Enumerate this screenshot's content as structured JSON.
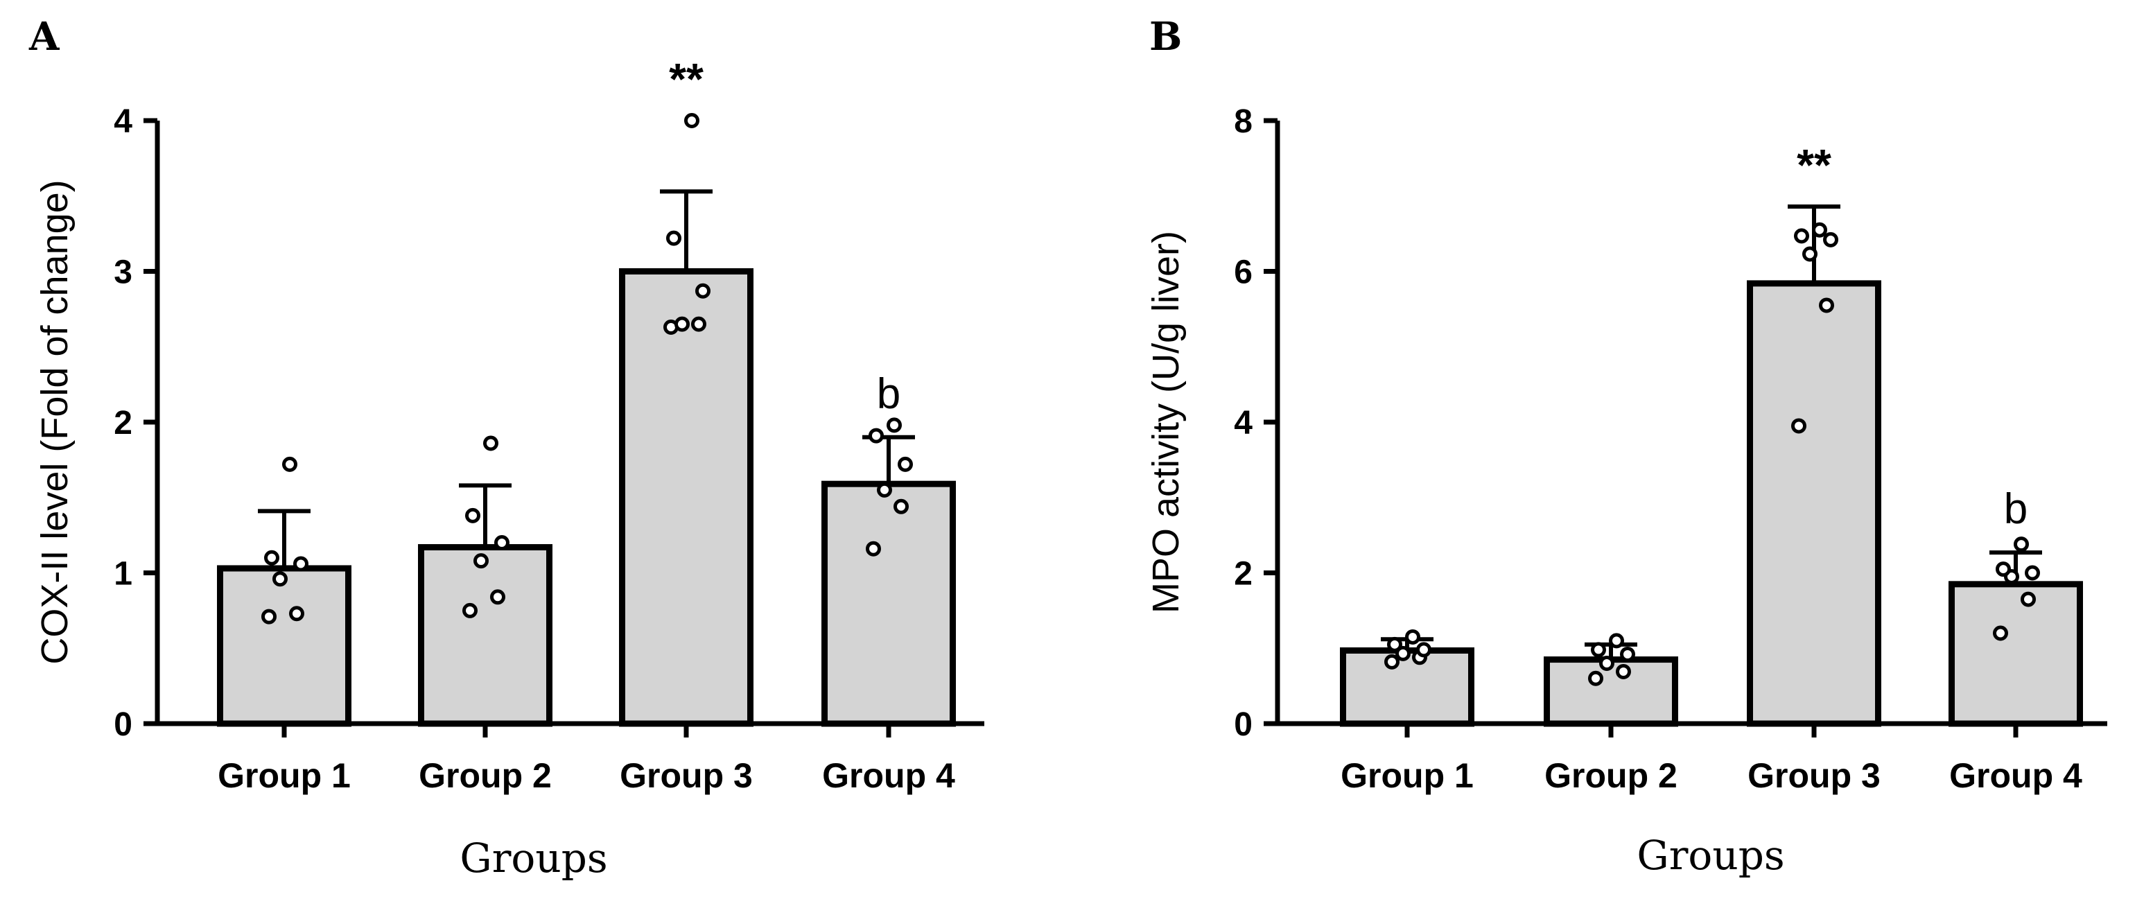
{
  "chart_data": [
    {
      "type": "bar",
      "panel": "A",
      "title": "",
      "xlabel": "Groups",
      "ylabel": "COX-II level (Fold of change)",
      "ylim": [
        0,
        4
      ],
      "yticks": [
        0,
        1,
        2,
        3,
        4
      ],
      "categories": [
        "Group 1",
        "Group 2",
        "Group 3",
        "Group 4"
      ],
      "values": [
        1.03,
        1.17,
        3.0,
        1.59
      ],
      "errors": [
        0.38,
        0.41,
        0.53,
        0.31
      ],
      "points": [
        [
          0.71,
          0.73,
          0.96,
          1.06,
          1.1,
          1.72
        ],
        [
          0.75,
          0.84,
          1.08,
          1.2,
          1.38,
          1.86
        ],
        [
          2.63,
          2.65,
          2.65,
          2.87,
          3.22,
          4.0
        ],
        [
          1.16,
          1.44,
          1.55,
          1.72,
          1.91,
          1.98
        ]
      ],
      "annotations": [
        "",
        "",
        "**",
        "b"
      ]
    },
    {
      "type": "bar",
      "panel": "B",
      "title": "",
      "xlabel": "Groups",
      "ylabel": "MPO activity (U/g liver)",
      "ylim": [
        0,
        8
      ],
      "yticks": [
        0,
        2,
        4,
        6,
        8
      ],
      "categories": [
        "Group 1",
        "Group 2",
        "Group 3",
        "Group 4"
      ],
      "values": [
        0.97,
        0.85,
        5.84,
        1.85
      ],
      "errors": [
        0.15,
        0.2,
        1.02,
        0.42
      ],
      "points": [
        [
          0.82,
          0.88,
          0.93,
          0.98,
          1.05,
          1.15
        ],
        [
          0.6,
          0.69,
          0.8,
          0.92,
          0.98,
          1.1
        ],
        [
          3.95,
          5.55,
          6.23,
          6.42,
          6.47,
          6.55
        ],
        [
          1.2,
          1.65,
          1.95,
          2.0,
          2.05,
          2.38
        ]
      ],
      "annotations": [
        "",
        "",
        "**",
        "b"
      ]
    }
  ]
}
